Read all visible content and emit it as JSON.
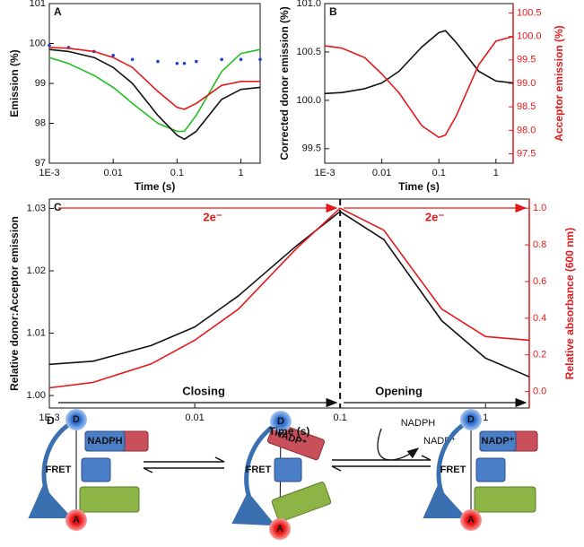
{
  "chart_data": [
    {
      "type": "line",
      "panel": "A",
      "xlabel": "Time (s)",
      "ylabel": "Emission (%)",
      "xscale": "log",
      "xlim": [
        0.001,
        2
      ],
      "xticks": [
        {
          "value": 0.001,
          "label": "1E-3"
        },
        0.01,
        0.1,
        1
      ],
      "ylim": [
        97,
        101
      ],
      "yticks": [
        97,
        98,
        99,
        100,
        101
      ],
      "x": [
        0.001,
        0.002,
        0.005,
        0.01,
        0.02,
        0.05,
        0.1,
        0.13,
        0.2,
        0.5,
        1,
        2
      ],
      "series": [
        {
          "color": "#1f3fd8",
          "mode": "markers",
          "values": [
            99.95,
            99.9,
            99.8,
            99.7,
            99.6,
            99.55,
            99.5,
            99.5,
            99.55,
            99.6,
            99.6,
            99.6
          ]
        },
        {
          "color": "#22c022",
          "values": [
            99.65,
            99.5,
            99.2,
            98.9,
            98.5,
            98.0,
            97.8,
            97.8,
            98.2,
            99.3,
            99.75,
            99.85
          ]
        },
        {
          "color": "#111111",
          "values": [
            99.85,
            99.8,
            99.65,
            99.4,
            99.0,
            98.2,
            97.7,
            97.6,
            97.8,
            98.6,
            98.85,
            98.9
          ]
        },
        {
          "color": "#e31a1c",
          "values": [
            99.9,
            99.88,
            99.8,
            99.65,
            99.4,
            98.8,
            98.4,
            98.35,
            98.5,
            98.95,
            99.05,
            99.05
          ]
        }
      ]
    },
    {
      "type": "line",
      "panel": "B",
      "xlabel": "Time (s)",
      "ylabel": "Corrected donor emission (%)",
      "y2label": "Acceptor emission (%)",
      "xscale": "log",
      "xlim": [
        0.001,
        2
      ],
      "xticks": [
        {
          "value": 0.001,
          "label": "1E-3"
        },
        0.01,
        0.1,
        1
      ],
      "ylim": [
        99.35,
        101
      ],
      "yticks": [
        99.5,
        {
          "value": 100,
          "label": "100.0"
        },
        100.5,
        {
          "value": 101,
          "label": "101.0"
        }
      ],
      "y2lim": [
        97.3,
        100.7
      ],
      "y2ticks": [
        97.5,
        {
          "value": 98,
          "label": "98.0"
        },
        98.5,
        {
          "value": 99,
          "label": "99.0"
        },
        99.5,
        {
          "value": 100,
          "label": "100.0"
        },
        100.5
      ],
      "x": [
        0.001,
        0.002,
        0.005,
        0.01,
        0.02,
        0.05,
        0.1,
        0.13,
        0.2,
        0.5,
        1,
        2
      ],
      "series": [
        {
          "color": "#111111",
          "values": [
            100.07,
            100.08,
            100.12,
            100.18,
            100.3,
            100.55,
            100.7,
            100.72,
            100.6,
            100.3,
            100.2,
            100.18
          ]
        },
        {
          "color": "#e31a1c",
          "axis": "y2",
          "values": [
            99.8,
            99.75,
            99.55,
            99.2,
            98.8,
            98.1,
            97.85,
            97.9,
            98.3,
            99.4,
            99.9,
            100.0
          ]
        }
      ]
    },
    {
      "type": "line",
      "panel": "C",
      "xlabel": "Time (s)",
      "ylabel": "Relative donor:Acceptor emission",
      "y2label": "Relative absorbance (600 nm)",
      "xscale": "log",
      "xlim": [
        0.001,
        2
      ],
      "xticks": [
        {
          "value": 0.001,
          "label": "1E-3"
        },
        0.01,
        0.1,
        1
      ],
      "ylim": [
        0.998,
        1.0315
      ],
      "yticks": [
        {
          "value": 1,
          "label": "1.00"
        },
        1.01,
        1.02,
        1.03
      ],
      "y2lim": [
        -0.09,
        1.05
      ],
      "y2ticks": [
        {
          "value": 0,
          "label": "0.0"
        },
        0.2,
        0.4,
        0.6,
        0.8,
        {
          "value": 1,
          "label": "1.0"
        }
      ],
      "vline": 0.1,
      "annotations": [
        "2e⁻",
        "2e⁻",
        "Closing",
        "Opening"
      ],
      "x": [
        0.001,
        0.002,
        0.005,
        0.01,
        0.02,
        0.05,
        0.1,
        0.2,
        0.5,
        1,
        2
      ],
      "series": [
        {
          "color": "#111111",
          "values": [
            1.005,
            1.0055,
            1.008,
            1.011,
            1.016,
            1.024,
            1.0295,
            1.025,
            1.012,
            1.006,
            1.003
          ]
        },
        {
          "color": "#e31a1c",
          "axis": "y2",
          "values": [
            0.02,
            0.05,
            0.15,
            0.28,
            0.45,
            0.78,
            1.0,
            0.88,
            0.45,
            0.3,
            0.28
          ]
        }
      ]
    }
  ],
  "diagram": {
    "panel": "D",
    "states": [
      {
        "donor": "D",
        "acceptor": "A",
        "fret": "FRET",
        "cofactor": "NADPH"
      },
      {
        "donor": "D",
        "acceptor": "A",
        "fret": "FRET",
        "cofactor": "NADP⁺"
      },
      {
        "donor": "D",
        "acceptor": "A",
        "fret": "FRET",
        "cofactor": "NADP⁺"
      }
    ],
    "reaction": {
      "substrate": "NADPH",
      "product": "NADP⁺"
    }
  }
}
